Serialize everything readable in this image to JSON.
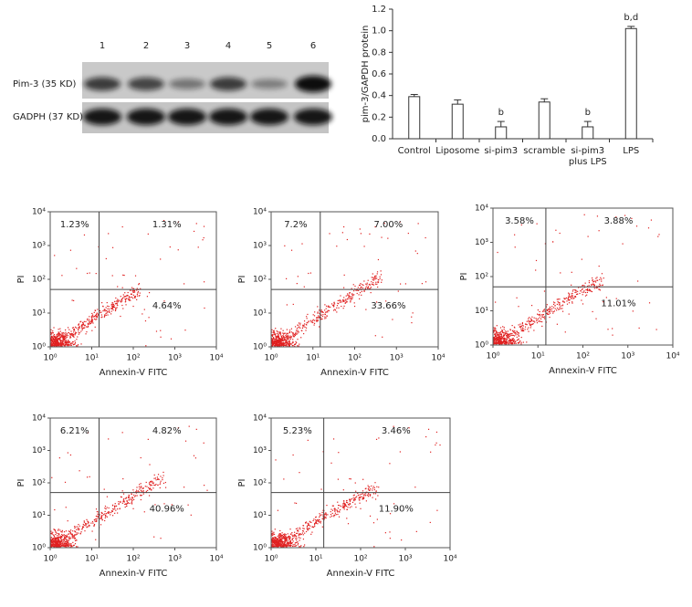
{
  "blot": {
    "lanes": [
      "1",
      "2",
      "3",
      "4",
      "5",
      "6"
    ],
    "rows": [
      "Pim-3 (35 KD)",
      "GADPH (37 KD)"
    ]
  },
  "chart_data": [
    {
      "type": "bar",
      "ylabel": "pim-3/GAPDH protein",
      "categories": [
        "Control",
        "Liposome",
        "si-pim3",
        "scramble",
        "si-pim3 plus LPS",
        "LPS"
      ],
      "values": [
        0.39,
        0.32,
        0.11,
        0.34,
        0.11,
        1.02
      ],
      "errors": [
        0.02,
        0.04,
        0.05,
        0.03,
        0.05,
        0.02
      ],
      "annotations": [
        null,
        null,
        "b",
        null,
        "b",
        "b,d"
      ],
      "color": "#ffffff",
      "ylim": [
        0,
        1.2
      ],
      "yticks": [
        {
          "value": 0,
          "label": "0.0"
        },
        0.2,
        0.4,
        0.6,
        0.8,
        {
          "value": 1,
          "label": "1.0"
        },
        1.2
      ]
    },
    {
      "type": "scatter",
      "xlabel": "Annexin-V FITC",
      "ylabel": "PI",
      "log": true,
      "xlim": [
        1,
        10000
      ],
      "ylim": [
        1,
        10000
      ],
      "xgate": 15,
      "ygate": 50,
      "color": "#e02020",
      "xticks": [
        {
          "value": 1,
          "label": "10⁰"
        },
        {
          "value": 10,
          "label": "10¹"
        },
        {
          "value": 100,
          "label": "10²"
        },
        {
          "value": 1000,
          "label": "10³"
        },
        {
          "value": 10000,
          "label": "10⁴"
        }
      ],
      "yticks": [
        {
          "value": 1,
          "label": "10⁰"
        },
        {
          "value": 10,
          "label": "10¹"
        },
        {
          "value": 100,
          "label": "10²"
        },
        {
          "value": 1000,
          "label": "10³"
        },
        {
          "value": 10000,
          "label": "10⁴"
        }
      ],
      "annotations": [
        "1.23%",
        "1.31%",
        "4.64%"
      ]
    },
    {
      "type": "scatter",
      "xlabel": "Annexin-V FITC",
      "ylabel": "PI",
      "log": true,
      "xlim": [
        1,
        10000
      ],
      "ylim": [
        1,
        10000
      ],
      "xgate": 15,
      "ygate": 50,
      "color": "#e02020",
      "xticks": [
        {
          "value": 1,
          "label": "10⁰"
        },
        {
          "value": 10,
          "label": "10¹"
        },
        {
          "value": 100,
          "label": "10²"
        },
        {
          "value": 1000,
          "label": "10³"
        },
        {
          "value": 10000,
          "label": "10⁴"
        }
      ],
      "yticks": [
        {
          "value": 1,
          "label": "10⁰"
        },
        {
          "value": 10,
          "label": "10¹"
        },
        {
          "value": 100,
          "label": "10²"
        },
        {
          "value": 1000,
          "label": "10³"
        },
        {
          "value": 10000,
          "label": "10⁴"
        }
      ],
      "annotations": [
        "7.2%",
        "7.00%",
        "33.66%"
      ]
    },
    {
      "type": "scatter",
      "xlabel": "Annexin-V FITC",
      "ylabel": "PI",
      "log": true,
      "xlim": [
        1,
        10000
      ],
      "ylim": [
        1,
        10000
      ],
      "xgate": 15,
      "ygate": 50,
      "color": "#e02020",
      "xticks": [
        {
          "value": 1,
          "label": "10⁰"
        },
        {
          "value": 10,
          "label": "10¹"
        },
        {
          "value": 100,
          "label": "10²"
        },
        {
          "value": 1000,
          "label": "10³"
        },
        {
          "value": 10000,
          "label": "10⁴"
        }
      ],
      "yticks": [
        {
          "value": 1,
          "label": "10⁰"
        },
        {
          "value": 10,
          "label": "10¹"
        },
        {
          "value": 100,
          "label": "10²"
        },
        {
          "value": 1000,
          "label": "10³"
        },
        {
          "value": 10000,
          "label": "10⁴"
        }
      ],
      "annotations": [
        "3.58%",
        "3.88%",
        "11.01%"
      ]
    },
    {
      "type": "scatter",
      "xlabel": "Annexin-V FITC",
      "ylabel": "PI",
      "log": true,
      "xlim": [
        1,
        10000
      ],
      "ylim": [
        1,
        10000
      ],
      "xgate": 15,
      "ygate": 50,
      "color": "#e02020",
      "xticks": [
        {
          "value": 1,
          "label": "10⁰"
        },
        {
          "value": 10,
          "label": "10¹"
        },
        {
          "value": 100,
          "label": "10²"
        },
        {
          "value": 1000,
          "label": "10³"
        },
        {
          "value": 10000,
          "label": "10⁴"
        }
      ],
      "yticks": [
        {
          "value": 1,
          "label": "10⁰"
        },
        {
          "value": 10,
          "label": "10¹"
        },
        {
          "value": 100,
          "label": "10²"
        },
        {
          "value": 1000,
          "label": "10³"
        },
        {
          "value": 10000,
          "label": "10⁴"
        }
      ],
      "annotations": [
        "6.21%",
        "4.82%",
        "40.96%"
      ]
    },
    {
      "type": "scatter",
      "xlabel": "Annexin-V FITC",
      "ylabel": "PI",
      "log": true,
      "xlim": [
        1,
        10000
      ],
      "ylim": [
        1,
        10000
      ],
      "xgate": 15,
      "ygate": 50,
      "color": "#e02020",
      "xticks": [
        {
          "value": 1,
          "label": "10⁰"
        },
        {
          "value": 10,
          "label": "10¹"
        },
        {
          "value": 100,
          "label": "10²"
        },
        {
          "value": 1000,
          "label": "10³"
        },
        {
          "value": 10000,
          "label": "10⁴"
        }
      ],
      "yticks": [
        {
          "value": 1,
          "label": "10⁰"
        },
        {
          "value": 10,
          "label": "10¹"
        },
        {
          "value": 100,
          "label": "10²"
        },
        {
          "value": 1000,
          "label": "10³"
        },
        {
          "value": 10000,
          "label": "10⁴"
        }
      ],
      "annotations": [
        "5.23%",
        "3.46%",
        "11.90%"
      ]
    }
  ]
}
